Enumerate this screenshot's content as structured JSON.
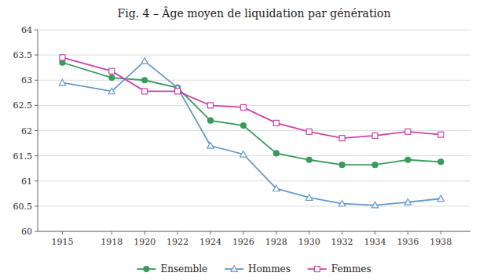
{
  "chart_data": {
    "type": "line",
    "title": "Fig. 4 – Âge moyen de liquidation par génération",
    "x": [
      1915,
      1918,
      1920,
      1922,
      1924,
      1926,
      1928,
      1930,
      1932,
      1934,
      1936,
      1938
    ],
    "series": [
      {
        "name": "Ensemble",
        "color": "#3a9a5c",
        "marker": "circle",
        "values": [
          63.35,
          63.05,
          63.0,
          62.85,
          62.2,
          62.1,
          61.55,
          61.42,
          61.32,
          61.32,
          61.42,
          61.38
        ]
      },
      {
        "name": "Hommes",
        "color": "#6699cc",
        "marker": "triangle",
        "values": [
          62.95,
          62.78,
          63.38,
          62.85,
          61.7,
          61.53,
          60.85,
          60.67,
          60.55,
          60.52,
          60.58,
          60.65
        ]
      },
      {
        "name": "Femmes",
        "color": "#cc44aa",
        "marker": "square",
        "values": [
          63.45,
          63.18,
          62.78,
          62.78,
          62.5,
          62.46,
          62.15,
          61.98,
          61.85,
          61.9,
          61.98,
          61.92
        ]
      }
    ],
    "xlim": [
      1913.5,
      1939.8
    ],
    "xticks": [
      1915,
      1918,
      1920,
      1922,
      1924,
      1926,
      1928,
      1930,
      1932,
      1934,
      1936,
      1938
    ],
    "ylim": [
      60,
      64
    ],
    "yticks": [
      60,
      60.5,
      61,
      61.5,
      62,
      62.5,
      63,
      63.5,
      64
    ],
    "grid": true,
    "legend": "bottom"
  }
}
